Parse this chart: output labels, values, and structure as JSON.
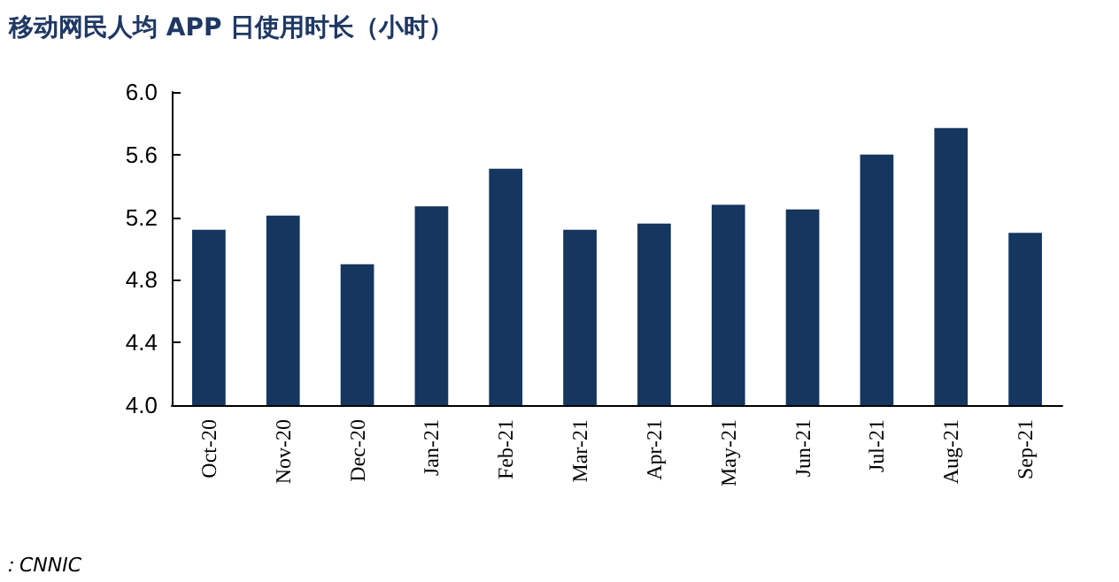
{
  "chart_data": {
    "type": "bar",
    "title": "移动网民人均 APP 日使用时长（小时）",
    "categories": [
      "Oct-20",
      "Nov-20",
      "Dec-20",
      "Jan-21",
      "Feb-21",
      "Mar-21",
      "Apr-21",
      "May-21",
      "Jun-21",
      "Jul-21",
      "Aug-21",
      "Sep-21"
    ],
    "values": [
      5.12,
      5.21,
      4.9,
      5.27,
      5.51,
      5.12,
      5.16,
      5.28,
      5.25,
      5.6,
      5.77,
      5.1
    ],
    "color": "#14365f",
    "ylim": [
      4.0,
      6.0
    ],
    "yticks": [
      {
        "value": 4.0,
        "label": "4.0"
      },
      {
        "value": 4.4,
        "label": "4.4"
      },
      {
        "value": 4.8,
        "label": "4.8"
      },
      {
        "value": 5.2,
        "label": "5.2"
      },
      {
        "value": 5.6,
        "label": "5.6"
      },
      {
        "value": 6.0,
        "label": "6.0"
      }
    ],
    "grid": false,
    "annotations": [
      "：CNNIC"
    ]
  }
}
